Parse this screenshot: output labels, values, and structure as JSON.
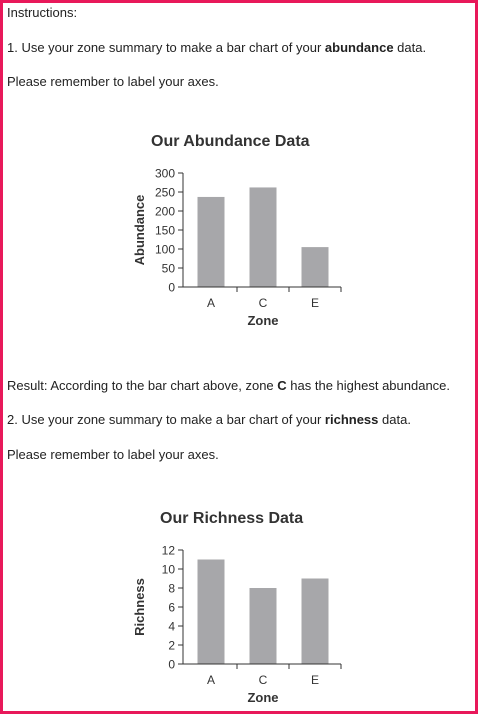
{
  "instructions_header": "Instructions:",
  "step1": {
    "prefix": "1. Use your zone summary to make a bar chart of your ",
    "bold": "abundance",
    "suffix": " data."
  },
  "reminder1": "Please remember to label your axes.",
  "result": {
    "prefix": "Result: According to the bar chart above, zone ",
    "bold": "C",
    "suffix": " has the highest abundance."
  },
  "step2": {
    "prefix": "2. Use your zone summary to make a bar chart of your ",
    "bold": "richness",
    "suffix": " data."
  },
  "reminder2": "Please remember to label your axes.",
  "colors": {
    "border": "#e8185a",
    "bar": "#a7a7aa",
    "axis": "#333333"
  },
  "chart_data": [
    {
      "type": "bar",
      "title": "Our Abundance Data",
      "xlabel": "Zone",
      "ylabel": "Abundance",
      "categories": [
        "A",
        "C",
        "E"
      ],
      "values": [
        237,
        262,
        105
      ],
      "ylim": [
        0,
        300
      ],
      "yticks": [
        0,
        50,
        100,
        150,
        200,
        250,
        300
      ],
      "grid": false
    },
    {
      "type": "bar",
      "title": "Our Richness Data",
      "xlabel": "Zone",
      "ylabel": "Richness",
      "categories": [
        "A",
        "C",
        "E"
      ],
      "values": [
        11,
        8,
        9
      ],
      "ylim": [
        0,
        12
      ],
      "yticks": [
        0,
        2,
        4,
        6,
        8,
        10,
        12
      ],
      "grid": false
    }
  ]
}
